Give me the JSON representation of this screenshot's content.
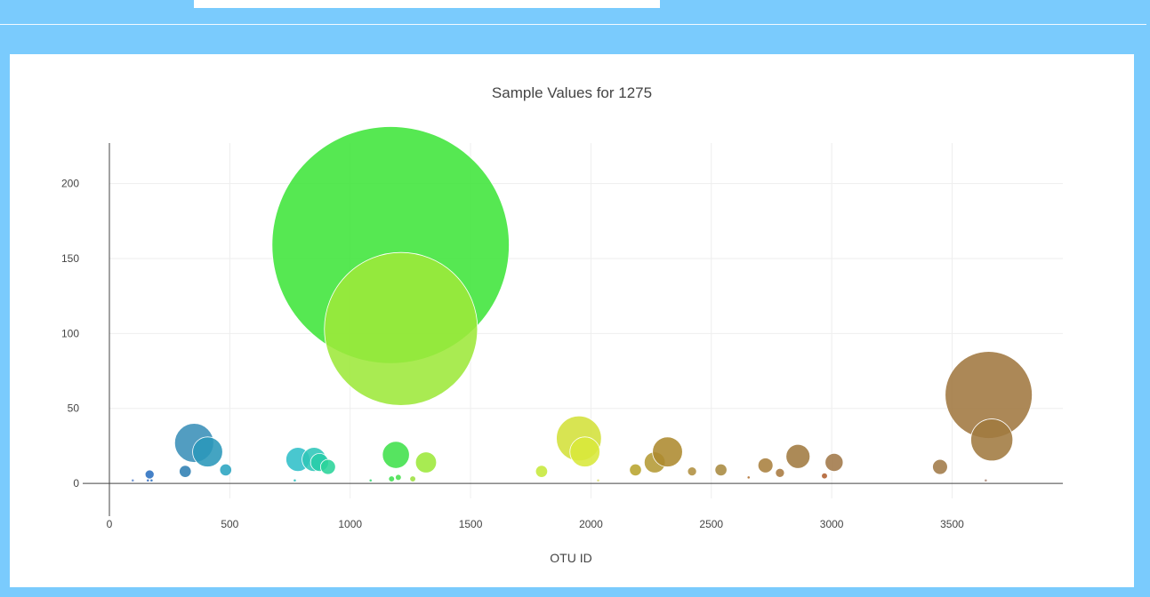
{
  "page": {
    "background": "#7acbfd"
  },
  "chart_data": {
    "type": "scatter",
    "mode": "bubble",
    "title": "Sample Values for 1275",
    "xlabel": "OTU ID",
    "ylabel": "",
    "xlim": [
      0,
      3960
    ],
    "ylim": [
      -10,
      227
    ],
    "xticks": [
      0,
      500,
      1000,
      1500,
      2000,
      2500,
      3000,
      3500
    ],
    "yticks": [
      0,
      50,
      100,
      150,
      200
    ],
    "grid": true,
    "colorscale": "Earth",
    "points": [
      {
        "x": 97,
        "y": 2,
        "r": 1,
        "color": "#6a8fd0"
      },
      {
        "x": 160,
        "y": 2,
        "r": 1,
        "color": "#3a6fc0"
      },
      {
        "x": 167,
        "y": 6,
        "r": 3,
        "color": "#2a6fbf"
      },
      {
        "x": 175,
        "y": 2,
        "r": 1,
        "color": "#2a6fbf"
      },
      {
        "x": 315,
        "y": 8,
        "r": 4,
        "color": "#2f7fb3"
      },
      {
        "x": 352,
        "y": 27,
        "r": 13,
        "color": "#3a8fb8"
      },
      {
        "x": 408,
        "y": 21,
        "r": 10,
        "color": "#2a97ba"
      },
      {
        "x": 483,
        "y": 9,
        "r": 4,
        "color": "#2aa4c0"
      },
      {
        "x": 770,
        "y": 2,
        "r": 1,
        "color": "#30c0c0"
      },
      {
        "x": 783,
        "y": 16,
        "r": 8,
        "color": "#30bfc8"
      },
      {
        "x": 850,
        "y": 16,
        "r": 8,
        "color": "#2ec6b8"
      },
      {
        "x": 873,
        "y": 14,
        "r": 6,
        "color": "#28cda8"
      },
      {
        "x": 908,
        "y": 11,
        "r": 5,
        "color": "#2ad49a"
      },
      {
        "x": 1085,
        "y": 2,
        "r": 1,
        "color": "#3ad878"
      },
      {
        "x": 1172,
        "y": 3,
        "r": 2,
        "color": "#40e050"
      },
      {
        "x": 1168,
        "y": 159,
        "r": 79,
        "color": "#3fe53a"
      },
      {
        "x": 1190,
        "y": 19,
        "r": 9,
        "color": "#3fe04a"
      },
      {
        "x": 1200,
        "y": 4,
        "r": 2,
        "color": "#4ae050"
      },
      {
        "x": 1211,
        "y": 103,
        "r": 51,
        "color": "#9de83a"
      },
      {
        "x": 1260,
        "y": 3,
        "r": 2,
        "color": "#9de040"
      },
      {
        "x": 1315,
        "y": 14,
        "r": 7,
        "color": "#9ce83a"
      },
      {
        "x": 1795,
        "y": 8,
        "r": 4,
        "color": "#c6e83a"
      },
      {
        "x": 1950,
        "y": 30,
        "r": 15,
        "color": "#d3e03a"
      },
      {
        "x": 1975,
        "y": 21,
        "r": 10,
        "color": "#d8e83a"
      },
      {
        "x": 2030,
        "y": 2,
        "r": 1,
        "color": "#e0e080"
      },
      {
        "x": 2185,
        "y": 9,
        "r": 4,
        "color": "#b8a42e"
      },
      {
        "x": 2265,
        "y": 14,
        "r": 7,
        "color": "#b49a34"
      },
      {
        "x": 2318,
        "y": 21,
        "r": 10,
        "color": "#ad8a2f"
      },
      {
        "x": 2420,
        "y": 8,
        "r": 3,
        "color": "#b09040"
      },
      {
        "x": 2540,
        "y": 9,
        "r": 4,
        "color": "#a88a40"
      },
      {
        "x": 2655,
        "y": 4,
        "r": 1,
        "color": "#b07030"
      },
      {
        "x": 2725,
        "y": 12,
        "r": 5,
        "color": "#a8803e"
      },
      {
        "x": 2785,
        "y": 7,
        "r": 3,
        "color": "#a87a40"
      },
      {
        "x": 2860,
        "y": 18,
        "r": 8,
        "color": "#a07a40"
      },
      {
        "x": 2970,
        "y": 5,
        "r": 2,
        "color": "#b06030"
      },
      {
        "x": 3010,
        "y": 14,
        "r": 6,
        "color": "#a07848"
      },
      {
        "x": 3450,
        "y": 11,
        "r": 5,
        "color": "#a07a48"
      },
      {
        "x": 3640,
        "y": 2,
        "r": 1,
        "color": "#b09080"
      },
      {
        "x": 3652,
        "y": 59,
        "r": 29,
        "color": "#a07840"
      },
      {
        "x": 3665,
        "y": 29,
        "r": 14,
        "color": "#a07a40"
      }
    ]
  }
}
